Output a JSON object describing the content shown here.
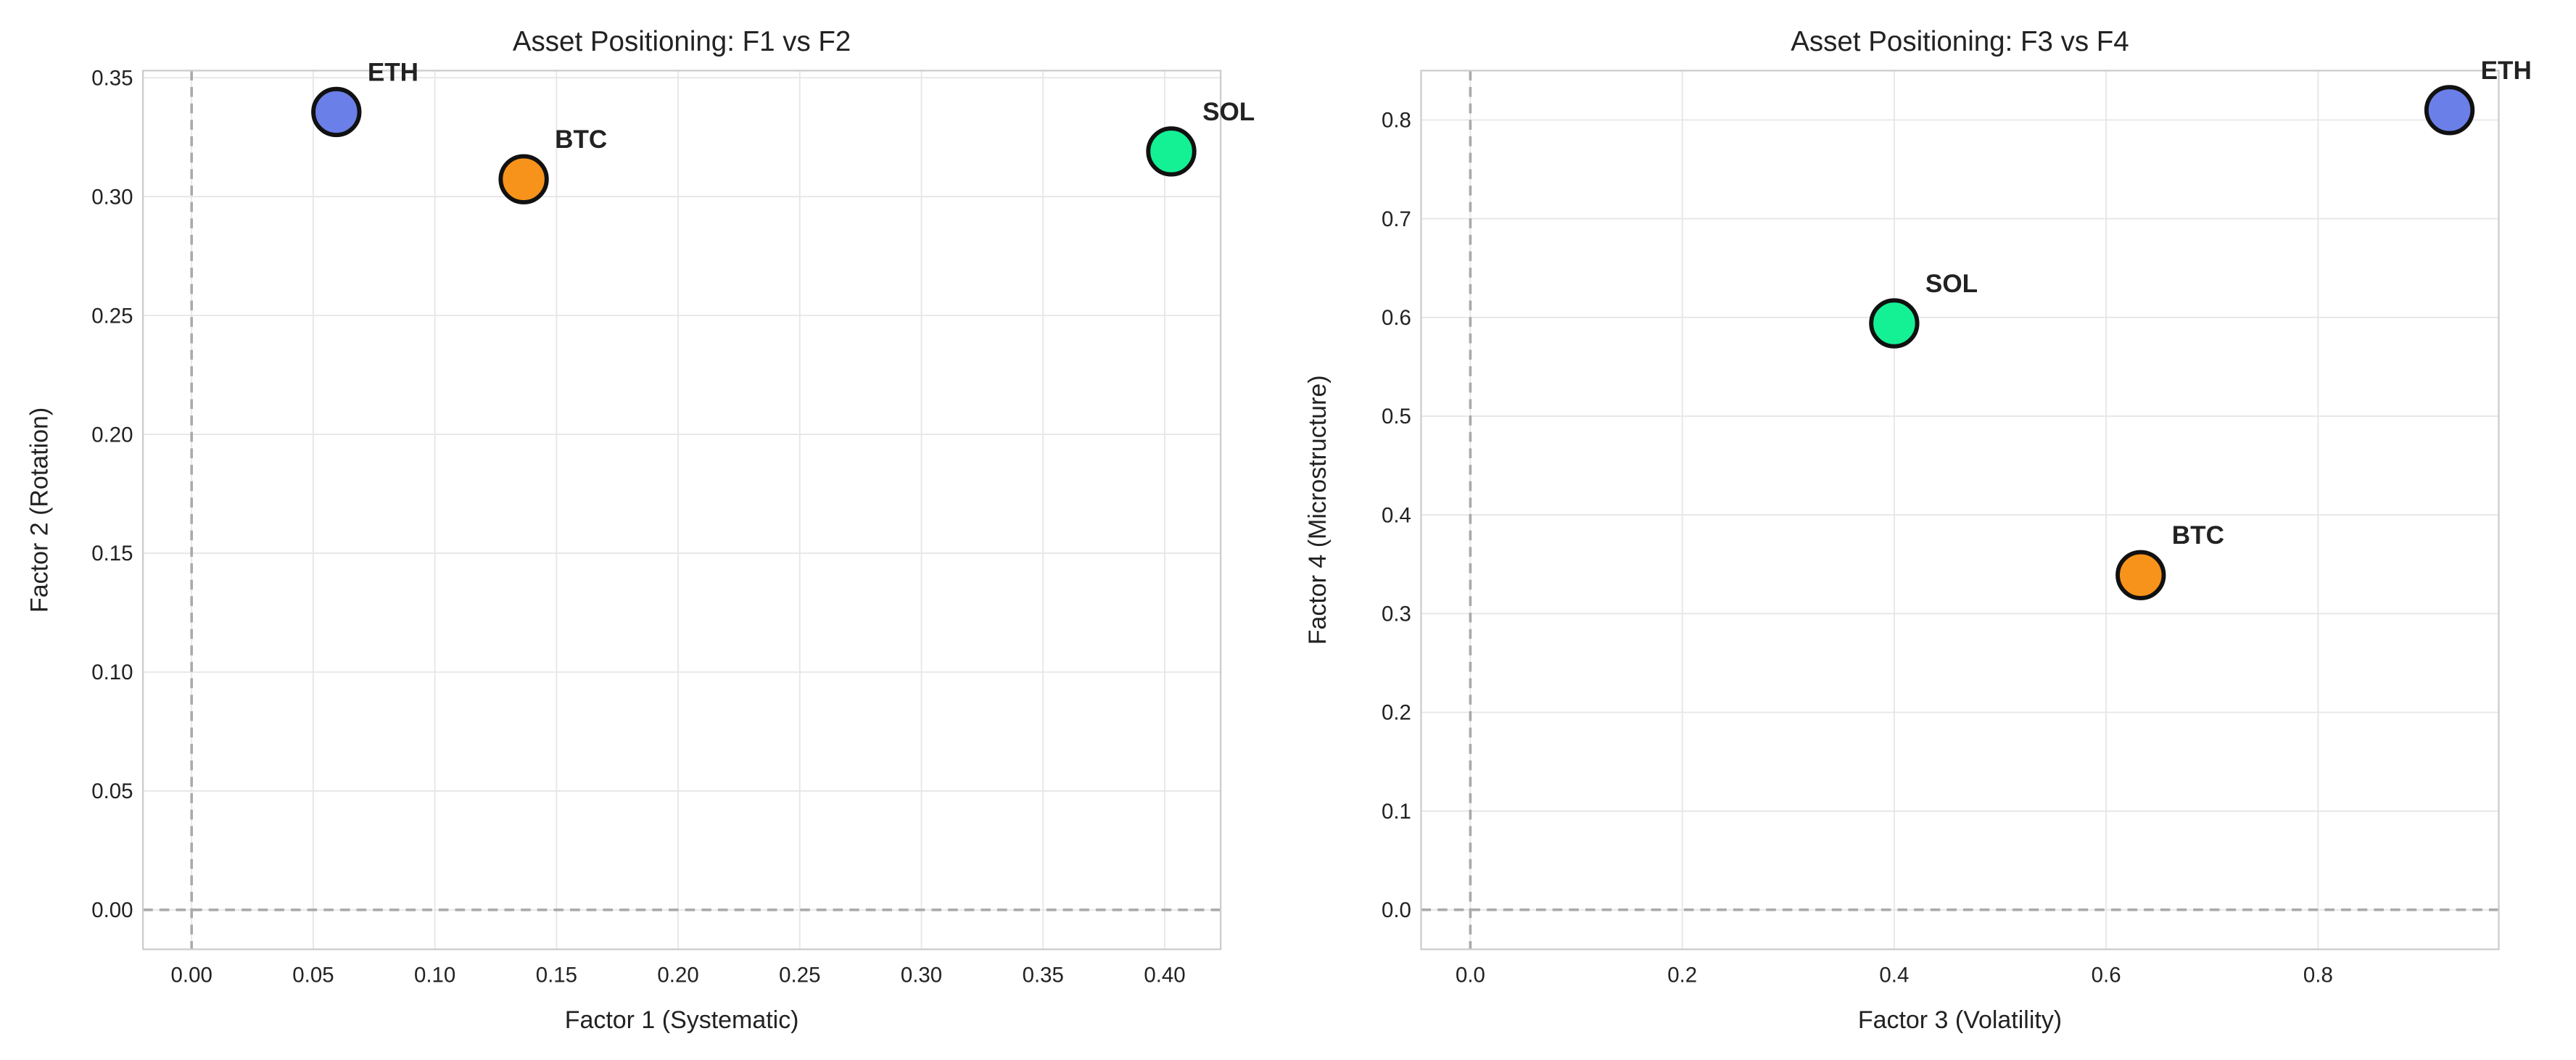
{
  "chart_data": [
    {
      "type": "scatter",
      "title": "Asset Positioning: F1 vs F2",
      "xlabel": "Factor 1 (Systematic)",
      "ylabel": "Factor 2 (Rotation)",
      "series": [
        {
          "name": "ETH",
          "color": "#6b7fe8",
          "x": [
            0.0595
          ],
          "values": [
            0.3356
          ]
        },
        {
          "name": "BTC",
          "color": "#f7931a",
          "x": [
            0.1365
          ],
          "values": [
            0.3073
          ]
        },
        {
          "name": "SOL",
          "color": "#14f195",
          "x": [
            0.4027
          ],
          "values": [
            0.319
          ]
        }
      ],
      "xlim": [
        -0.02,
        0.423
      ],
      "ylim": [
        -0.0166,
        0.353
      ],
      "xticks": [
        {
          "value": 0,
          "label": "0.00"
        },
        0.05,
        {
          "value": 0.1,
          "label": "0.10"
        },
        0.15,
        {
          "value": 0.2,
          "label": "0.20"
        },
        0.25,
        {
          "value": 0.3,
          "label": "0.30"
        },
        0.35,
        {
          "value": 0.4,
          "label": "0.40"
        }
      ],
      "yticks": [
        {
          "value": 0,
          "label": "0.00"
        },
        0.05,
        {
          "value": 0.1,
          "label": "0.10"
        },
        0.15,
        {
          "value": 0.2,
          "label": "0.20"
        },
        0.25,
        {
          "value": 0.3,
          "label": "0.30"
        },
        0.35
      ],
      "grid": true,
      "zero_lines": true
    },
    {
      "type": "scatter",
      "title": "Asset Positioning: F3 vs F4",
      "xlabel": "Factor 3 (Volatility)",
      "ylabel": "Factor 4 (Microstructure)",
      "series": [
        {
          "name": "ETH",
          "color": "#6b7fe8",
          "x": [
            0.924
          ],
          "values": [
            0.81
          ]
        },
        {
          "name": "BTC",
          "color": "#f7931a",
          "x": [
            0.6326
          ],
          "values": [
            0.339
          ]
        },
        {
          "name": "SOL",
          "color": "#14f195",
          "x": [
            0.4
          ],
          "values": [
            0.594
          ]
        }
      ],
      "xlim": [
        -0.0465,
        0.9705
      ],
      "ylim": [
        -0.04,
        0.85
      ],
      "xticks": [
        {
          "value": 0,
          "label": "0.0"
        },
        0.2,
        0.4,
        0.6,
        0.8
      ],
      "yticks": [
        {
          "value": 0,
          "label": "0.0"
        },
        0.1,
        0.2,
        0.3,
        0.4,
        0.5,
        0.6,
        0.7,
        0.8
      ],
      "grid": true,
      "zero_lines": true
    }
  ]
}
